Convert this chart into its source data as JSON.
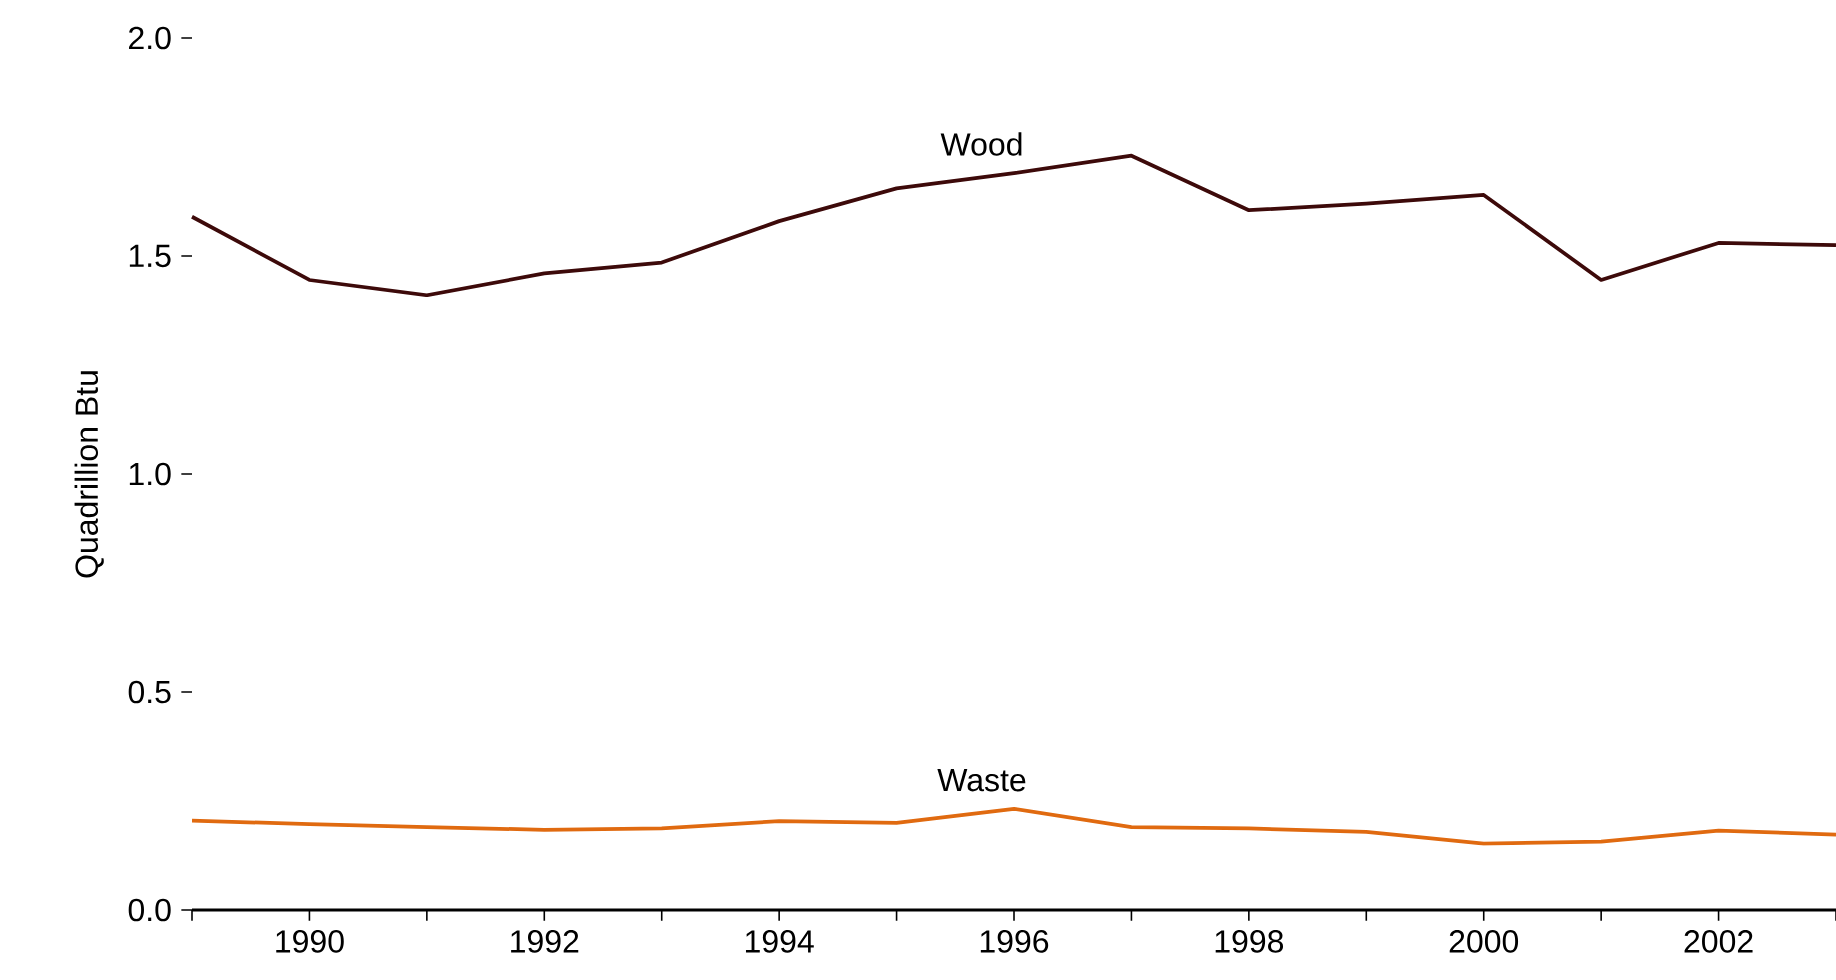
{
  "chart_data": {
    "type": "line",
    "ylabel": "Quadrillion Btu",
    "x": [
      1989,
      1990,
      1991,
      1992,
      1993,
      1994,
      1995,
      1996,
      1997,
      1998,
      1999,
      2000,
      2001,
      2002,
      2003
    ],
    "series": [
      {
        "name": "Wood",
        "color": "#3d0a0a",
        "values": [
          1.59,
          1.445,
          1.41,
          1.46,
          1.485,
          1.58,
          1.655,
          1.69,
          1.73,
          1.605,
          1.62,
          1.64,
          1.445,
          1.53,
          1.525
        ]
      },
      {
        "name": "Waste",
        "color": "#e06a10",
        "values": [
          0.205,
          0.197,
          0.19,
          0.184,
          0.187,
          0.204,
          0.2,
          0.232,
          0.19,
          0.187,
          0.179,
          0.152,
          0.157,
          0.182,
          0.173
        ]
      }
    ],
    "xlim": [
      1989,
      2003
    ],
    "xticks": [
      {
        "value": 1989,
        "label": null
      },
      1990,
      {
        "value": 1991,
        "label": null
      },
      1992,
      {
        "value": 1993,
        "label": null
      },
      1994,
      {
        "value": 1995,
        "label": null
      },
      1996,
      {
        "value": 1997,
        "label": null
      },
      1998,
      {
        "value": 1999,
        "label": null
      },
      2000,
      {
        "value": 2001,
        "label": null
      },
      2002,
      {
        "value": 2003,
        "label": null
      }
    ],
    "ylim": [
      0,
      2
    ],
    "yticks": [
      {
        "value": 0,
        "label": "0.0"
      },
      {
        "value": 0.5,
        "label": "0.5"
      },
      {
        "value": 1,
        "label": "1.0"
      },
      {
        "value": 1.5,
        "label": "1.5"
      },
      {
        "value": 2,
        "label": "2.0"
      }
    ],
    "grid": false,
    "legend": false,
    "marker": "none",
    "line_style": "solid"
  }
}
